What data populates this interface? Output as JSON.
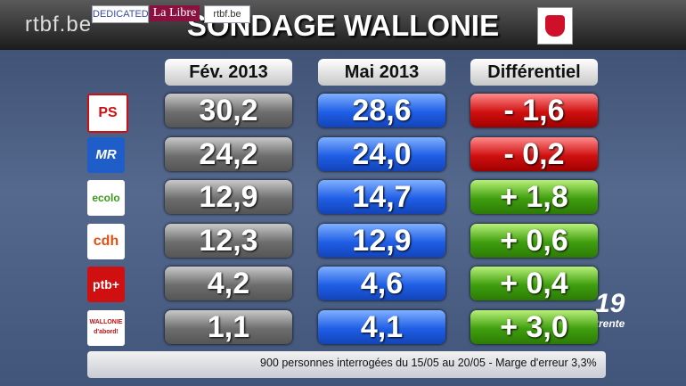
{
  "header": {
    "brand": "rtbf.be",
    "title": "SONDAGE WALLONIE"
  },
  "table": {
    "columns": [
      "Fév. 2013",
      "Mai 2013",
      "Différentiel"
    ],
    "rows": [
      {
        "party": "PS",
        "values": [
          "30,2",
          "28,6",
          "- 1,6"
        ]
      },
      {
        "party": "MR",
        "values": [
          "24,2",
          "24,0",
          "- 0,2"
        ]
      },
      {
        "party": "ecolo",
        "values": [
          "12,9",
          "14,7",
          "+ 1,8"
        ]
      },
      {
        "party": "cdh",
        "values": [
          "12,3",
          "12,9",
          "+ 0,6"
        ]
      },
      {
        "party": "ptb+",
        "values": [
          "4,2",
          "4,6",
          "+ 0,4"
        ]
      },
      {
        "party": "WALLONIE d'abord!",
        "values": [
          "1,1",
          "4,1",
          "+ 3,0"
        ]
      }
    ]
  },
  "footer": {
    "sponsors": [
      "DEDICATED",
      "La Libre",
      "rtbf.be"
    ],
    "note": "900 personnes interrogées du 15/05 au 20/05 - Marge d'erreur 3,3%"
  },
  "channel": {
    "number": "19",
    "name": "trente"
  }
}
